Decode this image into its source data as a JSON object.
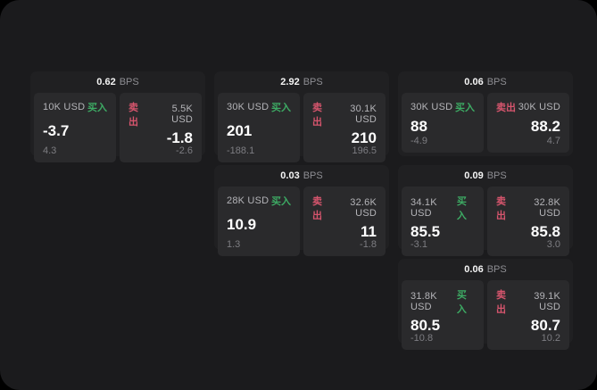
{
  "labels": {
    "bps_unit": "BPS",
    "buy": "买入",
    "sell": "卖出"
  },
  "colors": {
    "buy_green": "#3dab64",
    "sell_red": "#d6556d",
    "panel_bg": "#1b1b1d",
    "card_bg": "#202022",
    "subpanel_bg": "#2a2a2c"
  },
  "cards": [
    {
      "bps": "0.62",
      "buy": {
        "amount": "10K USD",
        "value": "-3.7",
        "sub": "4.3"
      },
      "sell": {
        "amount": "5.5K USD",
        "value": "-1.8",
        "sub": "-2.6"
      }
    },
    {
      "bps": "2.92",
      "buy": {
        "amount": "30K USD",
        "value": "201",
        "sub": "-188.1"
      },
      "sell": {
        "amount": "30.1K USD",
        "value": "210",
        "sub": "196.5"
      }
    },
    {
      "bps": "0.06",
      "buy": {
        "amount": "30K USD",
        "value": "88",
        "sub": "-4.9"
      },
      "sell": {
        "amount": "30K USD",
        "value": "88.2",
        "sub": "4.7"
      }
    },
    {
      "bps": "0.03",
      "buy": {
        "amount": "28K USD",
        "value": "10.9",
        "sub": "1.3"
      },
      "sell": {
        "amount": "32.6K USD",
        "value": "11",
        "sub": "-1.8"
      }
    },
    {
      "bps": "0.09",
      "buy": {
        "amount": "34.1K USD",
        "value": "85.5",
        "sub": "-3.1"
      },
      "sell": {
        "amount": "32.8K USD",
        "value": "85.8",
        "sub": "3.0"
      }
    },
    {
      "bps": "0.06",
      "buy": {
        "amount": "31.8K USD",
        "value": "80.5",
        "sub": "-10.8"
      },
      "sell": {
        "amount": "39.1K USD",
        "value": "80.7",
        "sub": "10.2"
      }
    }
  ]
}
